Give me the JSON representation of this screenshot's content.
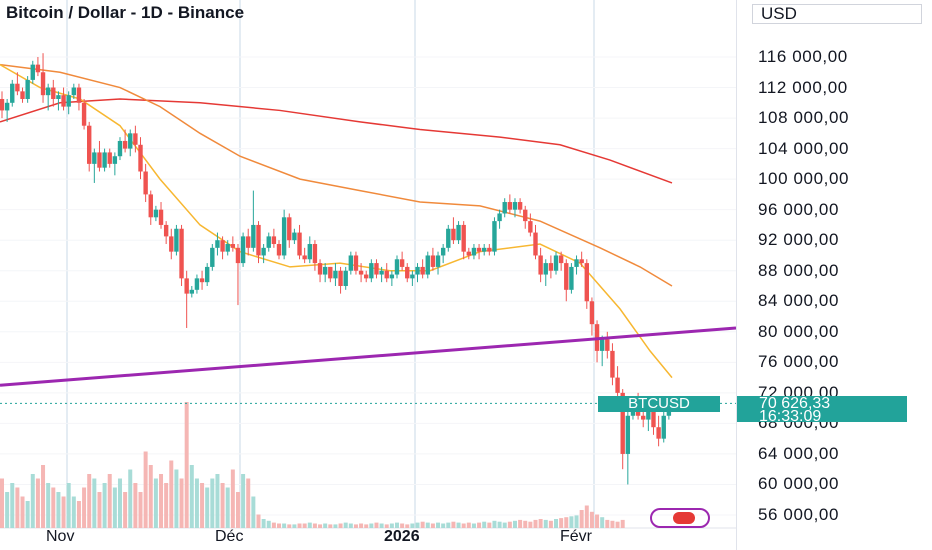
{
  "header": {
    "title": "Bitcoin / Dollar - 1D - Binance",
    "currency": "USD"
  },
  "x_axis_labels": [
    "Nov",
    "Déc",
    "2026",
    "Févr"
  ],
  "price_tag": {
    "symbol": "BTCUSD",
    "price": "70 626,33",
    "countdown": "16:33:09"
  },
  "colors": {
    "up": "#26a69a",
    "down": "#ef5350",
    "ma_fast": "#f7b731",
    "ma_mid": "#f08a3c",
    "ma_slow": "#e53935",
    "trendline": "#9c27b0",
    "current": "#22a39a"
  },
  "chart_data": {
    "type": "candlestick",
    "ylim": [
      54000,
      124000
    ],
    "y_ticks": [
      "116 000,00",
      "112 000,00",
      "108 000,00",
      "104 000,00",
      "100 000,00",
      "96 000,00",
      "92 000,00",
      "88 000,00",
      "84 000,00",
      "80 000,00",
      "76 000,00",
      "72 000,00",
      "68 000,00",
      "64 000,00",
      "60 000,00",
      "56 000,00"
    ],
    "y_tick_values": [
      116000,
      112000,
      108000,
      104000,
      100000,
      96000,
      92000,
      88000,
      84000,
      80000,
      76000,
      72000,
      68000,
      64000,
      60000,
      56000
    ],
    "candles": [
      [
        110500,
        111500,
        108000,
        109000
      ],
      [
        109000,
        110500,
        107500,
        110000
      ],
      [
        110000,
        113000,
        109500,
        112500
      ],
      [
        112500,
        114000,
        111000,
        111500
      ],
      [
        111500,
        112000,
        110000,
        110500
      ],
      [
        110500,
        113500,
        110000,
        113000
      ],
      [
        113000,
        115500,
        112500,
        115000
      ],
      [
        115000,
        116000,
        113500,
        114000
      ],
      [
        114000,
        116500,
        110000,
        111000
      ],
      [
        111000,
        112500,
        109000,
        112000
      ],
      [
        112000,
        113000,
        109500,
        110500
      ],
      [
        110500,
        111500,
        109000,
        111000
      ],
      [
        111000,
        112000,
        109000,
        109500
      ],
      [
        109500,
        111500,
        108500,
        111000
      ],
      [
        111000,
        112500,
        110500,
        112000
      ],
      [
        112000,
        112500,
        109000,
        110000
      ],
      [
        110000,
        110500,
        106500,
        107000
      ],
      [
        107000,
        107500,
        101000,
        102000
      ],
      [
        102000,
        104000,
        99500,
        103500
      ],
      [
        103500,
        105000,
        101000,
        101500
      ],
      [
        101500,
        104000,
        101000,
        103500
      ],
      [
        103500,
        104000,
        101500,
        102000
      ],
      [
        102000,
        103500,
        100500,
        103000
      ],
      [
        103000,
        105500,
        102500,
        105000
      ],
      [
        105000,
        106500,
        103500,
        104000
      ],
      [
        104000,
        106500,
        103000,
        106000
      ],
      [
        106000,
        107000,
        103500,
        104500
      ],
      [
        104500,
        105500,
        100000,
        101000
      ],
      [
        101000,
        102000,
        97000,
        98000
      ],
      [
        98000,
        98500,
        94000,
        95000
      ],
      [
        95000,
        96500,
        94500,
        96000
      ],
      [
        96000,
        97000,
        93500,
        94000
      ],
      [
        94000,
        94500,
        91500,
        92500
      ],
      [
        92500,
        93500,
        89500,
        90500
      ],
      [
        90500,
        94000,
        90000,
        93500
      ],
      [
        93500,
        94000,
        86000,
        87000
      ],
      [
        87000,
        88000,
        80500,
        85000
      ],
      [
        85000,
        86000,
        84500,
        85500
      ],
      [
        85500,
        87500,
        85000,
        87000
      ],
      [
        87000,
        88000,
        85500,
        86500
      ],
      [
        86500,
        89000,
        86000,
        88500
      ],
      [
        88500,
        91500,
        88000,
        91000
      ],
      [
        91000,
        93000,
        90000,
        92000
      ],
      [
        92000,
        92500,
        89500,
        90500
      ],
      [
        90500,
        92000,
        90000,
        91500
      ],
      [
        91500,
        92500,
        90500,
        91000
      ],
      [
        91000,
        91500,
        83500,
        89000
      ],
      [
        89000,
        93000,
        88500,
        92500
      ],
      [
        92500,
        93500,
        90000,
        91000
      ],
      [
        91000,
        98500,
        90500,
        94000
      ],
      [
        94000,
        94500,
        89000,
        90000
      ],
      [
        90000,
        91500,
        89000,
        91000
      ],
      [
        91000,
        93000,
        90500,
        92500
      ],
      [
        92500,
        93500,
        91000,
        91500
      ],
      [
        91500,
        92000,
        89500,
        90000
      ],
      [
        90000,
        96000,
        89500,
        95000
      ],
      [
        95000,
        95500,
        91000,
        92000
      ],
      [
        92000,
        93500,
        91500,
        93000
      ],
      [
        93000,
        94000,
        89500,
        90000
      ],
      [
        90000,
        91000,
        89000,
        89500
      ],
      [
        89500,
        92500,
        89000,
        91500
      ],
      [
        91500,
        92000,
        88000,
        89000
      ],
      [
        89000,
        89500,
        86500,
        87500
      ],
      [
        87500,
        89000,
        86500,
        88500
      ],
      [
        88500,
        88500,
        86500,
        87000
      ],
      [
        87000,
        89000,
        86000,
        88000
      ],
      [
        88000,
        88500,
        85000,
        86000
      ],
      [
        86000,
        88500,
        85500,
        88000
      ],
      [
        88000,
        90500,
        87500,
        90000
      ],
      [
        90000,
        90500,
        87500,
        88000
      ],
      [
        88000,
        89000,
        86500,
        87500
      ],
      [
        87500,
        88000,
        86500,
        87000
      ],
      [
        87000,
        89500,
        86500,
        89000
      ],
      [
        89000,
        89500,
        87000,
        87500
      ],
      [
        87500,
        88500,
        86500,
        88000
      ],
      [
        88000,
        89000,
        86500,
        87000
      ],
      [
        87000,
        88000,
        86000,
        87500
      ],
      [
        87500,
        90000,
        87000,
        89500
      ],
      [
        89500,
        90500,
        88000,
        88500
      ],
      [
        88500,
        89000,
        86500,
        87000
      ],
      [
        87000,
        88000,
        86000,
        87500
      ],
      [
        87500,
        89000,
        86500,
        88500
      ],
      [
        88500,
        89500,
        87000,
        87500
      ],
      [
        87500,
        90500,
        87000,
        90000
      ],
      [
        90000,
        91000,
        88000,
        88500
      ],
      [
        88500,
        90500,
        87500,
        90000
      ],
      [
        90000,
        91500,
        89000,
        91000
      ],
      [
        91000,
        94000,
        90500,
        93500
      ],
      [
        93500,
        95000,
        91500,
        92000
      ],
      [
        92000,
        94500,
        91500,
        94000
      ],
      [
        94000,
        94500,
        89500,
        90500
      ],
      [
        90500,
        91000,
        89500,
        90000
      ],
      [
        90000,
        91500,
        89500,
        91000
      ],
      [
        91000,
        91500,
        89500,
        90500
      ],
      [
        90500,
        91500,
        90000,
        91000
      ],
      [
        91000,
        91500,
        90000,
        90500
      ],
      [
        90500,
        95000,
        90000,
        94500
      ],
      [
        94500,
        96000,
        93500,
        95500
      ],
      [
        95500,
        97500,
        95000,
        97000
      ],
      [
        97000,
        98000,
        95500,
        96000
      ],
      [
        96000,
        97500,
        95000,
        97000
      ],
      [
        97000,
        97500,
        95500,
        96000
      ],
      [
        96000,
        96500,
        93500,
        94500
      ],
      [
        94500,
        95500,
        92500,
        93000
      ],
      [
        93000,
        94000,
        89500,
        90000
      ],
      [
        90000,
        91000,
        86500,
        87500
      ],
      [
        87500,
        89500,
        86000,
        89000
      ],
      [
        89000,
        90000,
        87000,
        88000
      ],
      [
        88000,
        90500,
        87500,
        90000
      ],
      [
        90000,
        90500,
        88000,
        89000
      ],
      [
        89000,
        89500,
        84000,
        85500
      ],
      [
        85500,
        89000,
        85000,
        88500
      ],
      [
        88500,
        90000,
        87500,
        89500
      ],
      [
        89500,
        90500,
        88500,
        89000
      ],
      [
        89000,
        89500,
        83000,
        84000
      ],
      [
        84000,
        84500,
        79500,
        81000
      ],
      [
        81000,
        81500,
        76000,
        77500
      ],
      [
        77500,
        79500,
        75500,
        79000
      ],
      [
        79000,
        80000,
        76500,
        77500
      ],
      [
        77500,
        78500,
        73000,
        74000
      ],
      [
        74000,
        75500,
        71000,
        72000
      ],
      [
        72000,
        72500,
        62000,
        64000
      ],
      [
        64000,
        70000,
        60000,
        69000
      ],
      [
        69000,
        71500,
        68500,
        71000
      ],
      [
        71000,
        72000,
        68500,
        69000
      ],
      [
        69000,
        70500,
        67500,
        68500
      ],
      [
        68500,
        70000,
        67000,
        69500
      ],
      [
        69500,
        70000,
        66500,
        67500
      ],
      [
        67500,
        69000,
        65000,
        66000
      ],
      [
        66000,
        69500,
        65500,
        69000
      ],
      [
        69000,
        70500,
        68500,
        70000
      ],
      [
        70000,
        71000,
        69500,
        70626
      ]
    ],
    "volume": [
      55,
      40,
      50,
      45,
      35,
      30,
      60,
      55,
      70,
      50,
      45,
      40,
      35,
      50,
      35,
      30,
      45,
      60,
      55,
      40,
      50,
      60,
      45,
      55,
      40,
      65,
      50,
      40,
      85,
      70,
      55,
      60,
      50,
      75,
      65,
      55,
      140,
      70,
      55,
      50,
      45,
      55,
      60,
      50,
      45,
      65,
      40,
      60,
      55,
      35,
      15,
      10,
      8,
      6,
      5,
      5,
      4,
      4,
      5,
      5,
      6,
      5,
      4,
      5,
      4,
      4,
      5,
      6,
      5,
      4,
      5,
      4,
      5,
      6,
      5,
      4,
      5,
      6,
      5,
      4,
      5,
      6,
      7,
      6,
      5,
      6,
      5,
      6,
      7,
      6,
      5,
      6,
      5,
      6,
      7,
      6,
      8,
      7,
      6,
      7,
      8,
      9,
      8,
      7,
      9,
      10,
      9,
      8,
      10,
      11,
      12,
      13,
      14,
      20,
      25,
      18,
      15,
      12,
      9,
      8,
      7,
      9
    ],
    "moving_averages": {
      "ma_fast": [
        [
          0,
          115000
        ],
        [
          40,
          112000
        ],
        [
          80,
          110500
        ],
        [
          120,
          107000
        ],
        [
          160,
          100000
        ],
        [
          200,
          94000
        ],
        [
          240,
          90500
        ],
        [
          290,
          88500
        ],
        [
          340,
          89000
        ],
        [
          390,
          88000
        ],
        [
          430,
          88000
        ],
        [
          480,
          90500
        ],
        [
          540,
          91500
        ],
        [
          580,
          89000
        ],
        [
          620,
          83000
        ],
        [
          650,
          77500
        ],
        [
          672,
          74000
        ]
      ],
      "ma_mid": [
        [
          0,
          115000
        ],
        [
          60,
          114000
        ],
        [
          120,
          112000
        ],
        [
          160,
          109500
        ],
        [
          200,
          106000
        ],
        [
          240,
          103000
        ],
        [
          300,
          100000
        ],
        [
          360,
          98500
        ],
        [
          420,
          97000
        ],
        [
          480,
          96500
        ],
        [
          540,
          94500
        ],
        [
          600,
          91000
        ],
        [
          640,
          88500
        ],
        [
          672,
          86000
        ]
      ],
      "ma_slow": [
        [
          0,
          107500
        ],
        [
          60,
          110000
        ],
        [
          120,
          110500
        ],
        [
          200,
          110000
        ],
        [
          280,
          109000
        ],
        [
          360,
          107500
        ],
        [
          420,
          106500
        ],
        [
          500,
          105500
        ],
        [
          560,
          104500
        ],
        [
          610,
          102500
        ],
        [
          672,
          99500
        ]
      ]
    },
    "trendline": {
      "from": [
        0,
        73000
      ],
      "to": [
        736,
        80500
      ]
    },
    "current_price": 70626.33
  }
}
